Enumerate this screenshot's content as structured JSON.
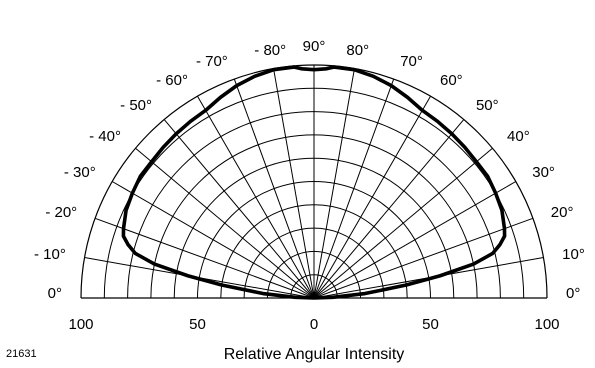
{
  "chart_data": {
    "type": "polar-radiation",
    "title": "",
    "xlabel": "Relative Angular Intensity",
    "figure_id": "21631",
    "radial_range": [
      0,
      100
    ],
    "radial_ticks": [
      100,
      50,
      0,
      50,
      100
    ],
    "angular_range_deg": [
      -90,
      90
    ],
    "angle_labels": [
      {
        "deg": -90,
        "text": "0°"
      },
      {
        "deg": -80,
        "text": "- 10°"
      },
      {
        "deg": -70,
        "text": "- 20°"
      },
      {
        "deg": -60,
        "text": "- 30°"
      },
      {
        "deg": -50,
        "text": "- 40°"
      },
      {
        "deg": -40,
        "text": "- 50°"
      },
      {
        "deg": -30,
        "text": "- 60°"
      },
      {
        "deg": -20,
        "text": "- 70°"
      },
      {
        "deg": -10,
        "text": "- 80°"
      },
      {
        "deg": 0,
        "text": "90°"
      },
      {
        "deg": 10,
        "text": "80°"
      },
      {
        "deg": 20,
        "text": "70°"
      },
      {
        "deg": 30,
        "text": "60°"
      },
      {
        "deg": 40,
        "text": "50°"
      },
      {
        "deg": 50,
        "text": "40°"
      },
      {
        "deg": 60,
        "text": "30°"
      },
      {
        "deg": 70,
        "text": "20°"
      },
      {
        "deg": 80,
        "text": "10°"
      },
      {
        "deg": 90,
        "text": "0°"
      }
    ],
    "grid": true,
    "series": [
      {
        "points": [
          [
            -88,
            8
          ],
          [
            -85,
            22
          ],
          [
            -82,
            40
          ],
          [
            -80,
            55
          ],
          [
            -78,
            70
          ],
          [
            -76,
            79
          ],
          [
            -74,
            83
          ],
          [
            -72,
            86
          ],
          [
            -70,
            87
          ],
          [
            -65,
            89
          ],
          [
            -60,
            90
          ],
          [
            -55,
            91
          ],
          [
            -50,
            91
          ],
          [
            -45,
            91.5
          ],
          [
            -40,
            92
          ],
          [
            -35,
            92.5
          ],
          [
            -30,
            93
          ],
          [
            -25,
            95
          ],
          [
            -20,
            97
          ],
          [
            -15,
            98.5
          ],
          [
            -10,
            99.5
          ],
          [
            -5,
            99.5
          ],
          [
            -3,
            98.5
          ],
          [
            0,
            98
          ],
          [
            3,
            98.5
          ],
          [
            5,
            99.5
          ],
          [
            10,
            99.5
          ],
          [
            15,
            98.5
          ],
          [
            20,
            97
          ],
          [
            25,
            95
          ],
          [
            30,
            93
          ],
          [
            35,
            92.5
          ],
          [
            40,
            92
          ],
          [
            45,
            91.5
          ],
          [
            50,
            91
          ],
          [
            55,
            91
          ],
          [
            60,
            90
          ],
          [
            65,
            89
          ],
          [
            70,
            87
          ],
          [
            72,
            86
          ],
          [
            74,
            83
          ],
          [
            76,
            79
          ],
          [
            78,
            70
          ],
          [
            80,
            55
          ],
          [
            82,
            40
          ],
          [
            85,
            22
          ],
          [
            88,
            8
          ]
        ]
      }
    ]
  }
}
